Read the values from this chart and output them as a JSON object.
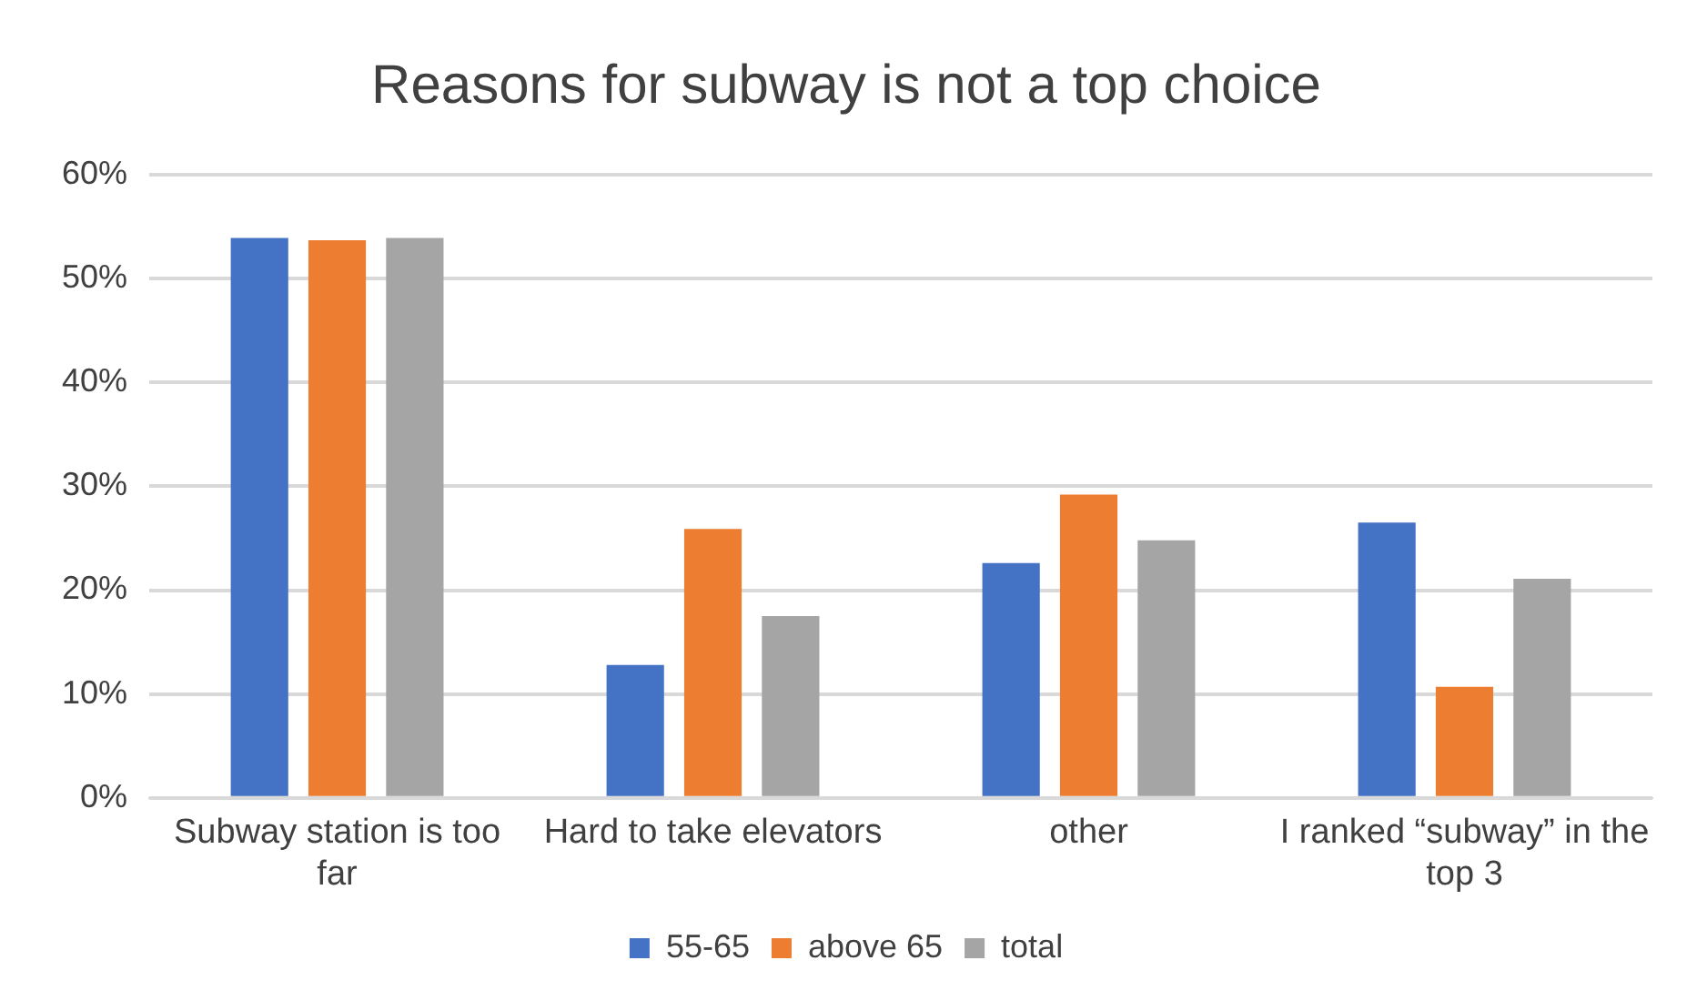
{
  "chart_data": {
    "type": "bar",
    "title": "Reasons for subway is not a top choice",
    "categories": [
      "Subway station is too far",
      "Hard to take elevators",
      "other",
      "I ranked “subway” in the top 3"
    ],
    "series": [
      {
        "name": "55-65",
        "color": "#4472c4",
        "values": [
          53.9,
          12.8,
          22.6,
          26.5
        ]
      },
      {
        "name": "above 65",
        "color": "#ed7d31",
        "values": [
          53.7,
          25.9,
          29.2,
          10.7
        ]
      },
      {
        "name": "total",
        "color": "#a5a5a5",
        "values": [
          53.9,
          17.5,
          24.8,
          21.1
        ]
      }
    ],
    "ylim": [
      0,
      60
    ],
    "yticks": [
      {
        "value": 0,
        "label": "0%"
      },
      {
        "value": 10,
        "label": "10%"
      },
      {
        "value": 20,
        "label": "20%"
      },
      {
        "value": 30,
        "label": "30%"
      },
      {
        "value": 40,
        "label": "40%"
      },
      {
        "value": 50,
        "label": "50%"
      },
      {
        "value": 60,
        "label": "60%"
      }
    ],
    "grid": "y",
    "legend": "bottom"
  }
}
